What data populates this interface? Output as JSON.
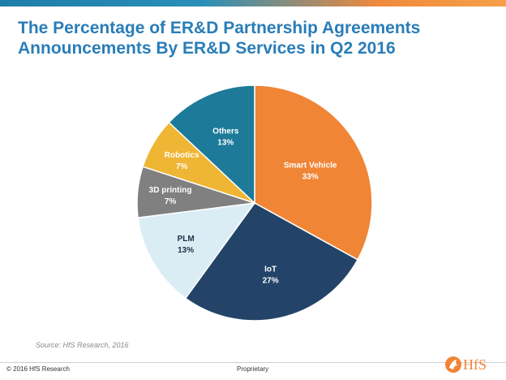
{
  "title": "The Percentage of ER&D Partnership Agreements Announcements By ER&D Services in Q2 2016",
  "source": "Source: HfS Research, 2016",
  "footer": {
    "copyright": "© 2016 HfS Research",
    "proprietary": "Proprietary"
  },
  "logo": {
    "text": "HfS",
    "letter": "H",
    "rest": "fS"
  },
  "chart_data": {
    "type": "pie",
    "title": "The Percentage of ER&D Partnership Agreements Announcements By ER&D Services in Q2 2016",
    "slices": [
      {
        "label": "Smart Vehicle",
        "value": 33,
        "value_label": "33%",
        "color": "#f08536",
        "label_color": "#ffffff"
      },
      {
        "label": "IoT",
        "value": 27,
        "value_label": "27%",
        "color": "#234468",
        "label_color": "#ffffff"
      },
      {
        "label": "PLM",
        "value": 13,
        "value_label": "13%",
        "color": "#daedf5",
        "label_color": "#1f2f44"
      },
      {
        "label": "3D printing",
        "value": 7,
        "value_label": "7%",
        "color": "#808080",
        "label_color": "#ffffff"
      },
      {
        "label": "Robotics",
        "value": 7,
        "value_label": "7%",
        "color": "#efb534",
        "label_color": "#ffffff"
      },
      {
        "label": "Others",
        "value": 13,
        "value_label": "13%",
        "color": "#1d7a99",
        "label_color": "#ffffff"
      }
    ],
    "legend": "none"
  }
}
